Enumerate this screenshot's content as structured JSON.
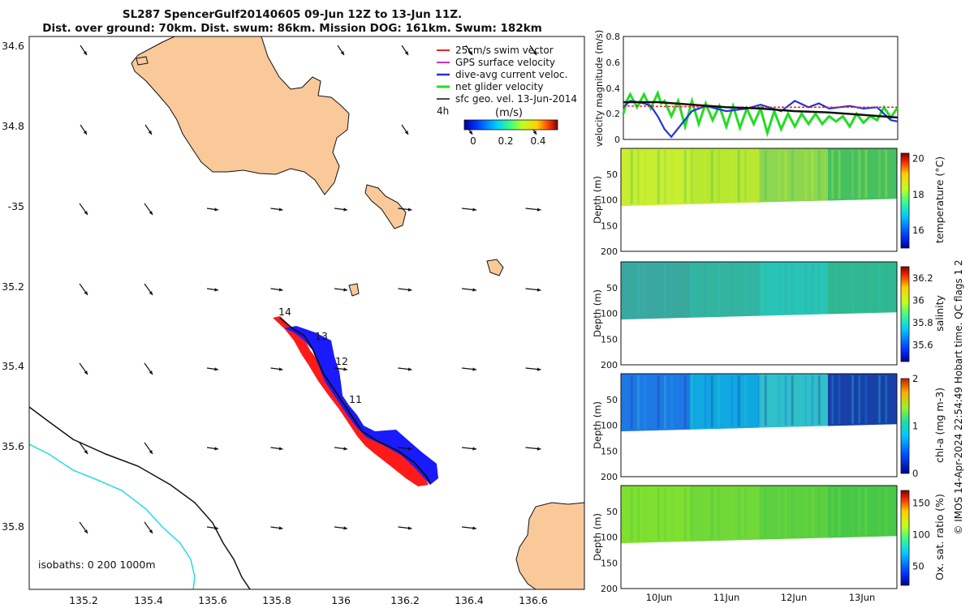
{
  "title": {
    "line1": "SL287 SpencerGulf20140605 09-Jun 12Z to 13-Jun 11Z.",
    "line2": "Dist. over ground: 70km. Dist. swum: 86km. Mission DOG: 161km. Swum: 182km"
  },
  "map": {
    "lat_ticks": [
      "34.6",
      "34.8",
      "-35",
      "35.2",
      "35.4",
      "35.6",
      "35.8"
    ],
    "lon_ticks": [
      "135.2",
      "135.4",
      "135.6",
      "135.8",
      "136",
      "136.2",
      "136.4",
      "136.6"
    ],
    "legend": [
      {
        "label": "25cm/s swim vector",
        "color": "#ee2222"
      },
      {
        "label": "GPS surface velocity",
        "color": "#cc33cc"
      },
      {
        "label": "dive-avg current veloc.",
        "color": "#2233dd"
      },
      {
        "label": "net glider velocity",
        "color": "#22dd22"
      },
      {
        "label": "sfc geo. vel. 13-Jun-2014",
        "color": "#111111"
      }
    ],
    "legend_time": "4h",
    "colorbar_title": "(m/s)",
    "colorbar_ticks": [
      "0",
      "0.2",
      "0.4"
    ],
    "track_labels": [
      "14",
      "13",
      "12",
      "11"
    ],
    "isobaths_label": "isobaths: 0   200  1000m"
  },
  "chart_data": [
    {
      "type": "line",
      "ylabel": "velocity magnitude (m/s)",
      "ylim": [
        0,
        0.8
      ],
      "ytick_labels": [
        "0",
        "0.2",
        "0.4",
        "0.6",
        "0.8"
      ],
      "x_range_days": [
        9.5,
        13.5
      ],
      "series": [
        {
          "name": "dive-avg current",
          "color": "#2233dd",
          "x": [
            9.5,
            9.6,
            9.7,
            9.8,
            9.9,
            10.0,
            10.1,
            10.2,
            10.35,
            10.5,
            10.7,
            11.0,
            11.3,
            11.5,
            11.8,
            12.0,
            12.2,
            12.35,
            12.5,
            12.8,
            13.0,
            13.2,
            13.4,
            13.5
          ],
          "y": [
            0.25,
            0.3,
            0.29,
            0.28,
            0.26,
            0.18,
            0.08,
            0.02,
            0.12,
            0.22,
            0.26,
            0.22,
            0.24,
            0.27,
            0.22,
            0.3,
            0.25,
            0.28,
            0.24,
            0.26,
            0.24,
            0.25,
            0.15,
            0.14
          ]
        },
        {
          "name": "net glider velocity",
          "color": "#22dd22",
          "x": [
            9.5,
            9.55,
            9.6,
            9.7,
            9.8,
            9.9,
            10.0,
            10.05,
            10.1,
            10.2,
            10.3,
            10.4,
            10.5,
            10.6,
            10.7,
            10.8,
            10.9,
            11.0,
            11.1,
            11.2,
            11.3,
            11.4,
            11.5,
            11.6,
            11.7,
            11.8,
            11.9,
            12.0,
            12.1,
            12.2,
            12.3,
            12.4,
            12.5,
            12.6,
            12.7,
            12.8,
            12.9,
            13.0,
            13.1,
            13.2,
            13.3,
            13.4,
            13.5
          ],
          "y": [
            0.2,
            0.3,
            0.35,
            0.25,
            0.35,
            0.24,
            0.36,
            0.28,
            0.3,
            0.18,
            0.3,
            0.1,
            0.3,
            0.12,
            0.28,
            0.15,
            0.26,
            0.1,
            0.26,
            0.09,
            0.24,
            0.12,
            0.24,
            0.05,
            0.22,
            0.08,
            0.2,
            0.1,
            0.2,
            0.12,
            0.2,
            0.12,
            0.18,
            0.14,
            0.18,
            0.1,
            0.2,
            0.13,
            0.18,
            0.15,
            0.25,
            0.17,
            0.25
          ]
        },
        {
          "name": "swim speed",
          "color": "#ee2222",
          "x": [
            9.5,
            11.0,
            12.0,
            13.5
          ],
          "y": [
            0.26,
            0.25,
            0.25,
            0.25
          ]
        },
        {
          "name": "sfc geo vel",
          "color": "#111111",
          "x": [
            9.5,
            10.0,
            10.5,
            11.0,
            11.5,
            12.0,
            12.5,
            13.0,
            13.5
          ],
          "y": [
            0.29,
            0.29,
            0.27,
            0.25,
            0.24,
            0.22,
            0.21,
            0.19,
            0.17
          ]
        }
      ]
    },
    {
      "type": "heatmap",
      "variable": "temperature",
      "cbar_label": "temperature (°C)",
      "cbar_ticks": [
        "16",
        "18",
        "20"
      ],
      "cbar_range": [
        15,
        20.3
      ],
      "ylabel": "Depth (m)",
      "yticks": [
        "50",
        "100",
        "150",
        "200"
      ],
      "colors": [
        "#c8ee30",
        "#b8e830",
        "#8cd650",
        "#46c060"
      ]
    },
    {
      "type": "heatmap",
      "variable": "salinity",
      "cbar_label": "salinity",
      "cbar_ticks": [
        "35.6",
        "35.8",
        "36",
        "36.2"
      ],
      "cbar_range": [
        35.45,
        36.3
      ],
      "ylabel": "Depth (m)",
      "yticks": [
        "50",
        "100",
        "150",
        "200"
      ],
      "colors": [
        "#3aa8a0",
        "#32b4a0",
        "#28c4b8",
        "#30b890"
      ]
    },
    {
      "type": "heatmap",
      "variable": "chl-a",
      "cbar_label": "chl-a (mg m-3)",
      "cbar_ticks": [
        "0",
        "1",
        "2"
      ],
      "cbar_range": [
        0,
        2
      ],
      "ylabel": "Depth (m)",
      "yticks": [
        "50",
        "100",
        "150",
        "200"
      ],
      "colors": [
        "#1e78e6",
        "#10a8e0",
        "#30c0c8",
        "#1840a8"
      ]
    },
    {
      "type": "heatmap",
      "variable": "oxygen saturation",
      "cbar_label": "Ox. sat. ratio (%)",
      "cbar_ticks": [
        "50",
        "100",
        "150"
      ],
      "cbar_range": [
        20,
        170
      ],
      "ylabel": "Depth (m)",
      "yticks": [
        "50",
        "100",
        "150",
        "200"
      ],
      "colors": [
        "#80e030",
        "#70d838",
        "#5cd040",
        "#48c848"
      ]
    }
  ],
  "time_axis": {
    "ticks": [
      "10Jun",
      "11Jun",
      "12Jun",
      "13Jun"
    ]
  },
  "footer": "© IMOS 14-Apr-2024 22:54:49 Hobart time. QC flags 1  2"
}
